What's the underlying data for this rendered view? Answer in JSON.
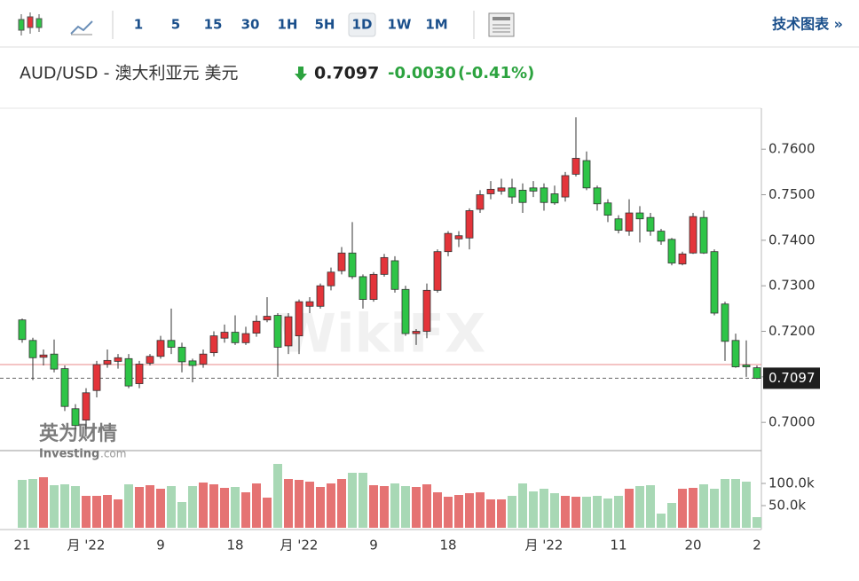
{
  "toolbar": {
    "intervals": [
      "1",
      "5",
      "15",
      "30",
      "1H",
      "5H",
      "1D",
      "1W",
      "1M"
    ],
    "selected_index": 6,
    "link": "技术图表 »"
  },
  "header": {
    "symbol": "AUD/USD - 澳大利亚元 美元",
    "price": "0.7097",
    "change": "-0.0030",
    "change_pct": "(-0.41%)"
  },
  "logo": {
    "cn": "英为财情",
    "en": "Investing",
    "domain": ".com"
  },
  "chart_data": [
    {
      "type": "candlestick",
      "up_color": "#e3343a",
      "down_color": "#2ec447",
      "categories": [
        "21",
        null,
        null,
        null,
        null,
        null,
        "月 '22",
        null,
        null,
        null,
        null,
        null,
        null,
        "9",
        null,
        null,
        null,
        null,
        null,
        null,
        "18",
        null,
        null,
        null,
        null,
        null,
        "月 '22",
        null,
        null,
        null,
        null,
        null,
        null,
        "9",
        null,
        null,
        null,
        null,
        null,
        null,
        "18",
        null,
        null,
        null,
        null,
        null,
        null,
        null,
        null,
        "月 '22",
        null,
        null,
        null,
        null,
        null,
        null,
        "11",
        null,
        null,
        null,
        null,
        null,
        null,
        "20",
        null,
        null,
        null,
        null,
        null,
        "2"
      ],
      "open": [
        0.7225,
        0.718,
        0.7143,
        0.715,
        0.7118,
        0.703,
        0.7005,
        0.707,
        0.7128,
        0.7134,
        0.714,
        0.7085,
        0.713,
        0.7145,
        0.718,
        0.7165,
        0.7135,
        0.7128,
        0.7153,
        0.7185,
        0.7198,
        0.7175,
        0.7196,
        0.7225,
        0.7235,
        0.7168,
        0.719,
        0.7255,
        0.7255,
        0.73,
        0.7333,
        0.7372,
        0.732,
        0.727,
        0.7325,
        0.7355,
        0.7292,
        0.7195,
        0.72,
        0.729,
        0.7375,
        0.7403,
        0.7405,
        0.7468,
        0.7502,
        0.7508,
        0.7515,
        0.751,
        0.7515,
        0.7515,
        0.7502,
        0.7495,
        0.7545,
        0.7575,
        0.7515,
        0.7482,
        0.7447,
        0.742,
        0.746,
        0.745,
        0.742,
        0.7402,
        0.7348,
        0.7372,
        0.745,
        0.7375,
        0.726,
        0.718,
        0.7126,
        0.712
      ],
      "high": [
        0.7228,
        0.7186,
        0.716,
        0.7182,
        0.7125,
        0.704,
        0.7075,
        0.7135,
        0.716,
        0.715,
        0.715,
        0.7135,
        0.715,
        0.719,
        0.725,
        0.7175,
        0.714,
        0.716,
        0.72,
        0.7215,
        0.7235,
        0.721,
        0.7235,
        0.7275,
        0.724,
        0.724,
        0.727,
        0.7275,
        0.7305,
        0.734,
        0.7385,
        0.744,
        0.7325,
        0.733,
        0.737,
        0.7365,
        0.73,
        0.7205,
        0.7305,
        0.738,
        0.742,
        0.742,
        0.747,
        0.751,
        0.753,
        0.7535,
        0.7535,
        0.7525,
        0.753,
        0.7525,
        0.752,
        0.755,
        0.767,
        0.7595,
        0.752,
        0.749,
        0.7455,
        0.749,
        0.7475,
        0.746,
        0.7425,
        0.7405,
        0.7375,
        0.746,
        0.7465,
        0.738,
        0.7265,
        0.7195,
        0.718,
        0.7125
      ],
      "low": [
        0.7175,
        0.7093,
        0.7125,
        0.711,
        0.7025,
        0.6985,
        0.6985,
        0.7055,
        0.712,
        0.7118,
        0.7075,
        0.7075,
        0.7125,
        0.714,
        0.715,
        0.711,
        0.7088,
        0.712,
        0.7145,
        0.7175,
        0.717,
        0.717,
        0.7188,
        0.722,
        0.71,
        0.715,
        0.715,
        0.724,
        0.725,
        0.729,
        0.7325,
        0.7315,
        0.725,
        0.7265,
        0.732,
        0.7285,
        0.719,
        0.717,
        0.7185,
        0.7285,
        0.7365,
        0.7385,
        0.738,
        0.746,
        0.749,
        0.75,
        0.748,
        0.746,
        0.7495,
        0.7465,
        0.7478,
        0.7485,
        0.754,
        0.751,
        0.7465,
        0.744,
        0.7415,
        0.741,
        0.7395,
        0.741,
        0.739,
        0.7345,
        0.7345,
        0.737,
        0.737,
        0.7235,
        0.7135,
        0.712,
        0.71,
        0.7095
      ],
      "close": [
        0.7182,
        0.7142,
        0.7148,
        0.7117,
        0.7035,
        0.6993,
        0.7065,
        0.7127,
        0.7136,
        0.7142,
        0.708,
        0.7128,
        0.7145,
        0.718,
        0.7165,
        0.7133,
        0.7125,
        0.715,
        0.719,
        0.7198,
        0.7175,
        0.7195,
        0.7222,
        0.7233,
        0.7165,
        0.7232,
        0.7265,
        0.7265,
        0.73,
        0.733,
        0.7372,
        0.732,
        0.727,
        0.7325,
        0.7362,
        0.7292,
        0.7195,
        0.72,
        0.729,
        0.7375,
        0.7415,
        0.741,
        0.7465,
        0.75,
        0.7512,
        0.7515,
        0.7495,
        0.7483,
        0.7508,
        0.7483,
        0.7482,
        0.7542,
        0.758,
        0.7515,
        0.748,
        0.7455,
        0.7422,
        0.746,
        0.7447,
        0.742,
        0.7398,
        0.735,
        0.737,
        0.7452,
        0.7372,
        0.724,
        0.7178,
        0.7122,
        0.7122,
        0.7097
      ],
      "ylim": [
        0.6938,
        0.769
      ],
      "yticks": [
        {
          "value": 0.7,
          "label": "0.7000"
        },
        {
          "value": 0.71,
          "label": "0.7100"
        },
        {
          "value": 0.72,
          "label": "0.7200"
        },
        {
          "value": 0.73,
          "label": "0.7300"
        },
        {
          "value": 0.74,
          "label": "0.7400"
        },
        {
          "value": 0.75,
          "label": "0.7500"
        },
        {
          "value": 0.76,
          "label": "0.7600"
        }
      ],
      "last_price": {
        "value": 0.7097,
        "label": "0.7097"
      },
      "reference_line": 0.7127
    },
    {
      "type": "bar",
      "up_color": "#e57373",
      "down_color": "#a8d8b5",
      "values": [
        108000,
        110000,
        114000,
        96000,
        98000,
        94000,
        72000,
        72000,
        74000,
        64000,
        98000,
        92000,
        96000,
        88000,
        94000,
        58000,
        94000,
        102000,
        98000,
        90000,
        92000,
        80000,
        100000,
        68000,
        144000,
        110000,
        108000,
        104000,
        92000,
        100000,
        110000,
        124000,
        124000,
        96000,
        94000,
        100000,
        94000,
        92000,
        98000,
        80000,
        70000,
        74000,
        78000,
        80000,
        64000,
        64000,
        72000,
        100000,
        82000,
        88000,
        78000,
        72000,
        70000,
        70000,
        72000,
        66000,
        72000,
        88000,
        94000,
        96000,
        32000,
        56000,
        88000,
        90000,
        98000,
        88000,
        110000,
        110000,
        104000,
        24000
      ],
      "ylim": [
        0,
        170000
      ],
      "yticks": [
        {
          "value": 50000,
          "label": "50.0k"
        },
        {
          "value": 100000,
          "label": "100.0k"
        }
      ]
    }
  ]
}
